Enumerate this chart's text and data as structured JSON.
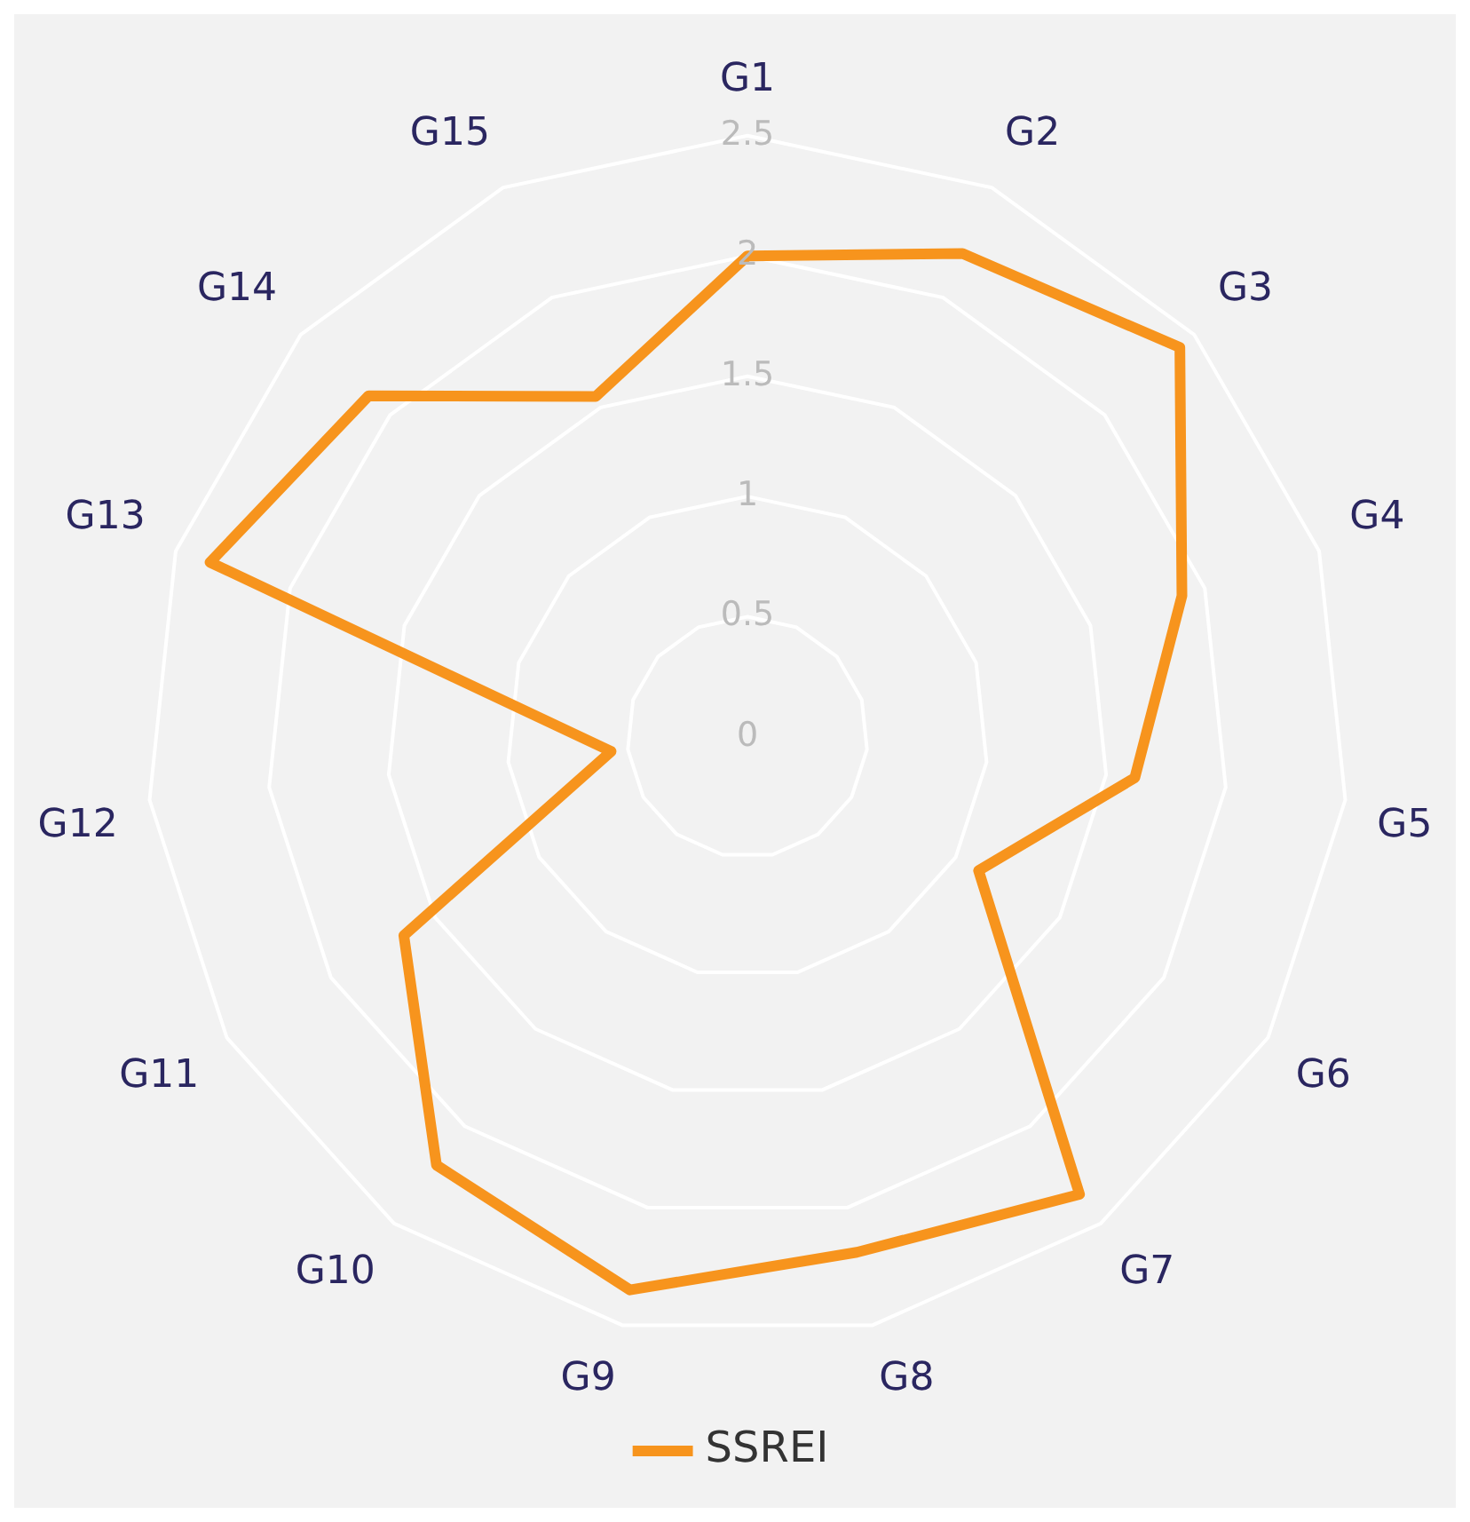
{
  "chart_data": {
    "type": "radar",
    "categories": [
      "G1",
      "G2",
      "G3",
      "G4",
      "G5",
      "G6",
      "G7",
      "G8",
      "G9",
      "G10",
      "G11",
      "G12",
      "G13",
      "G14",
      "G15"
    ],
    "series": [
      {
        "name": "SSREI",
        "color": "#f7941d",
        "values": [
          2.0,
          2.2,
          2.42,
          1.9,
          1.62,
          1.11,
          2.35,
          2.19,
          2.35,
          2.2,
          1.65,
          0.57,
          2.35,
          2.12,
          1.55
        ]
      }
    ],
    "ylim": [
      0,
      2.5
    ],
    "yticks": [
      0,
      0.5,
      1,
      1.5,
      2,
      2.5
    ],
    "grid": true,
    "legend": "bottom",
    "marker": "none",
    "line_style": "solid"
  }
}
